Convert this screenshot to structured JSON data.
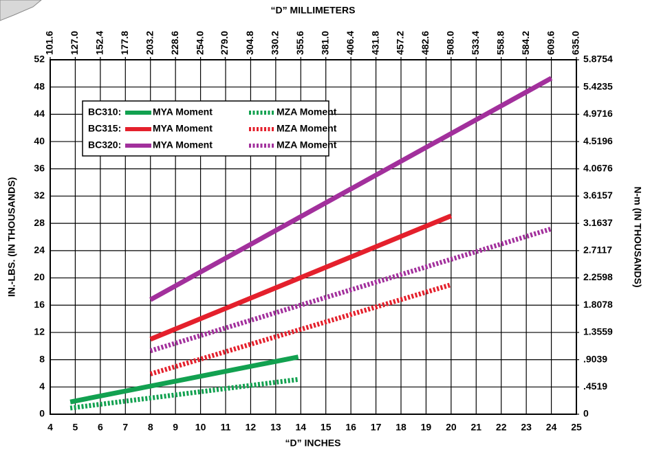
{
  "chart_data": {
    "type": "line",
    "title": "“D” MILLIMETERS",
    "x_label": "“D” INCHES",
    "y_label": "IN.-LBS. (IN THOUSANDS)",
    "y2_label": "N-m (IN THOUSANDS)",
    "xlim": [
      4,
      25
    ],
    "xticks": [
      4,
      5,
      6,
      7,
      8,
      9,
      10,
      11,
      12,
      13,
      14,
      15,
      16,
      17,
      18,
      19,
      20,
      21,
      22,
      23,
      24,
      25
    ],
    "x2lim": [
      101.6,
      635.0
    ],
    "x2ticks": [
      {
        "value": 101.6,
        "label": "101.6"
      },
      {
        "value": 127.0,
        "label": "127.0"
      },
      {
        "value": 152.4,
        "label": "152.4"
      },
      {
        "value": 177.8,
        "label": "177.8"
      },
      {
        "value": 203.2,
        "label": "203.2"
      },
      {
        "value": 228.6,
        "label": "228.6"
      },
      {
        "value": 254.0,
        "label": "254.0"
      },
      {
        "value": 279.0,
        "label": "279.0"
      },
      {
        "value": 304.8,
        "label": "304.8"
      },
      {
        "value": 330.2,
        "label": "330.2"
      },
      {
        "value": 355.6,
        "label": "355.6"
      },
      {
        "value": 381.0,
        "label": "381.0"
      },
      {
        "value": 406.4,
        "label": "406.4"
      },
      {
        "value": 431.8,
        "label": "431.8"
      },
      {
        "value": 457.2,
        "label": "457.2"
      },
      {
        "value": 482.6,
        "label": "482.6"
      },
      {
        "value": 508.0,
        "label": "508.0"
      },
      {
        "value": 533.4,
        "label": "533.4"
      },
      {
        "value": 558.8,
        "label": "558.8"
      },
      {
        "value": 584.2,
        "label": "584.2"
      },
      {
        "value": 609.6,
        "label": "609.6"
      },
      {
        "value": 635.0,
        "label": "635.0"
      }
    ],
    "ylim": [
      0,
      52
    ],
    "yticks": [
      0,
      4,
      8,
      12,
      16,
      20,
      24,
      28,
      32,
      36,
      40,
      44,
      48,
      52
    ],
    "y2lim": [
      0,
      5.8754
    ],
    "y2ticks": [
      0,
      {
        "value": 0.4519,
        "label": ".4519"
      },
      {
        "value": 0.9039,
        "label": ".9039"
      },
      1.3559,
      1.8078,
      2.2598,
      2.7117,
      3.1637,
      3.6157,
      4.0676,
      4.5196,
      4.9716,
      5.4235,
      5.8754
    ],
    "grid": true,
    "legend_groups": [
      "BC310:",
      "BC315:",
      "BC320:"
    ],
    "series": [
      {
        "name": "MYA Moment",
        "color": "#12a150",
        "style": "solid",
        "x": [
          4.8,
          13.9
        ],
        "values": [
          1.8,
          8.4
        ]
      },
      {
        "name": "MZA Moment",
        "color": "#12a150",
        "style": "dotted",
        "x": [
          4.8,
          13.9
        ],
        "values": [
          0.9,
          5.1
        ]
      },
      {
        "name": "MYA Moment",
        "color": "#e4202c",
        "style": "solid",
        "x": [
          8,
          20
        ],
        "values": [
          11.0,
          29.1
        ]
      },
      {
        "name": "MZA Moment",
        "color": "#e4202c",
        "style": "dotted",
        "x": [
          8,
          20
        ],
        "values": [
          5.9,
          19.0
        ]
      },
      {
        "name": "MYA Moment",
        "color": "#a2309c",
        "style": "solid",
        "x": [
          8,
          24
        ],
        "values": [
          16.8,
          49.3
        ]
      },
      {
        "name": "MZA Moment",
        "color": "#a2309c",
        "style": "dotted",
        "x": [
          8,
          24
        ],
        "values": [
          9.3,
          27.2
        ]
      }
    ]
  }
}
